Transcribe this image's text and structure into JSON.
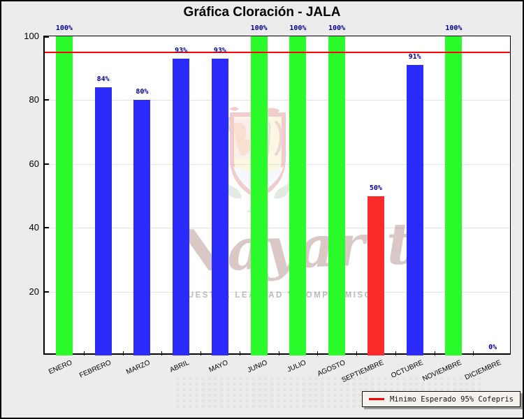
{
  "chart_data": {
    "type": "bar",
    "title": "Gráfica Cloración - JALA",
    "categories": [
      "ENERO",
      "FEBRERO",
      "MARZO",
      "ABRIL",
      "MAYO",
      "JUNIO",
      "JULIO",
      "AGOSTO",
      "SEPTIEMBRE",
      "OCTUBRE",
      "NOVIEMBRE",
      "DICIEMBRE"
    ],
    "values": [
      100,
      84,
      80,
      93,
      93,
      100,
      100,
      100,
      50,
      91,
      100,
      0
    ],
    "bar_colors": [
      "green",
      "blue",
      "blue",
      "blue",
      "blue",
      "green",
      "green",
      "green",
      "red",
      "blue",
      "green",
      "none"
    ],
    "value_label_suffix": "%",
    "xlabel": "",
    "ylabel": "",
    "ylim": [
      0,
      100
    ],
    "yticks": [
      20,
      40,
      60,
      80,
      100
    ],
    "grid": "horizontal-light",
    "threshold_line": {
      "value": 95,
      "color": "#ff0000",
      "label": "Minimo Esperado 95% Cofepris"
    },
    "legend_position": "bottom-right"
  },
  "colors": {
    "page_background": "#ececec",
    "plot_background": "#ffffff",
    "bar_green": "#2bfb2b",
    "bar_blue": "#2b2bfb",
    "bar_red": "#fb2b2b",
    "bar_none": "transparent",
    "value_label": "#000099",
    "gridline": "#e2e2e2",
    "threshold": "#ff0000",
    "axis": "#000000"
  },
  "legend": {
    "entries": [
      {
        "label": "Minimo Esperado 95% Cofepris",
        "line_color": "#ff0000"
      }
    ]
  },
  "watermark": {
    "icon": "nayarit-coat-of-arms",
    "script_text": "Nayarit",
    "tagline": "NUESTRA LEALTAD Y COMPROMISO"
  }
}
